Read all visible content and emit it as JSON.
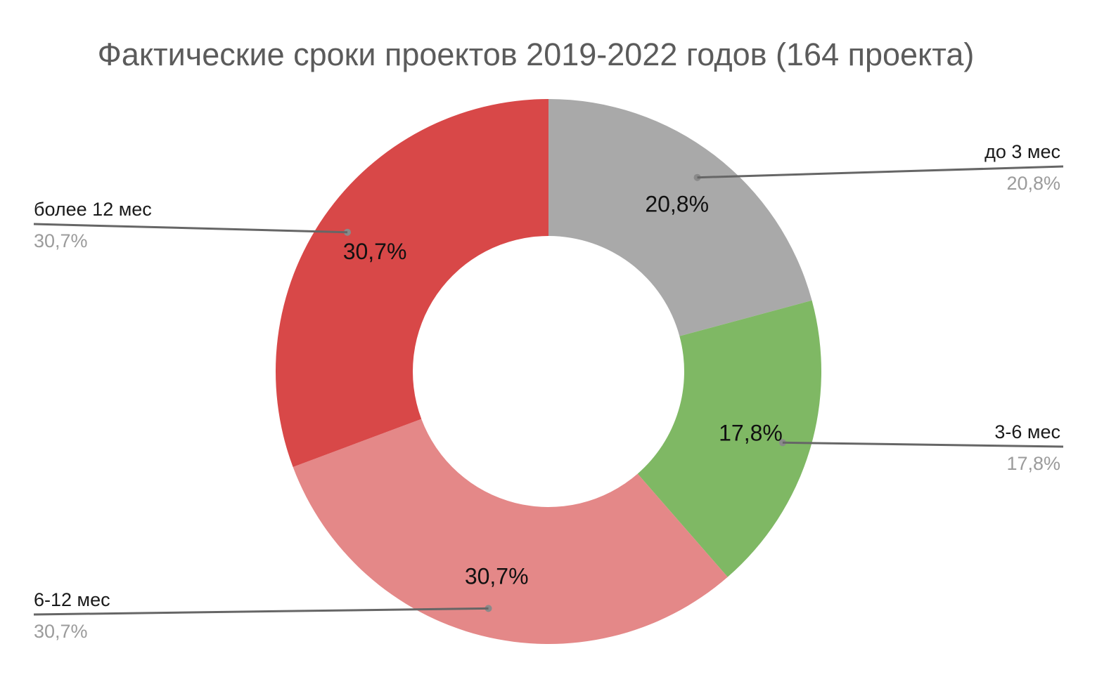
{
  "chart_data": {
    "type": "pie",
    "variant": "donut",
    "title": "Фактические сроки проектов 2019-2022 годов (164 проекта)",
    "categories": [
      "до 3 мес",
      "3-6 мес",
      "6-12 мес",
      "более 12 мес"
    ],
    "values": [
      20.8,
      17.8,
      30.7,
      30.7
    ],
    "value_labels": [
      "20,8%",
      "17,8%",
      "30,7%",
      "30,7%"
    ],
    "colors": [
      "#a9a9a9",
      "#7fb864",
      "#e48888",
      "#d84848"
    ],
    "start_angle": "top",
    "direction": "clockwise",
    "legend": "callouts"
  }
}
